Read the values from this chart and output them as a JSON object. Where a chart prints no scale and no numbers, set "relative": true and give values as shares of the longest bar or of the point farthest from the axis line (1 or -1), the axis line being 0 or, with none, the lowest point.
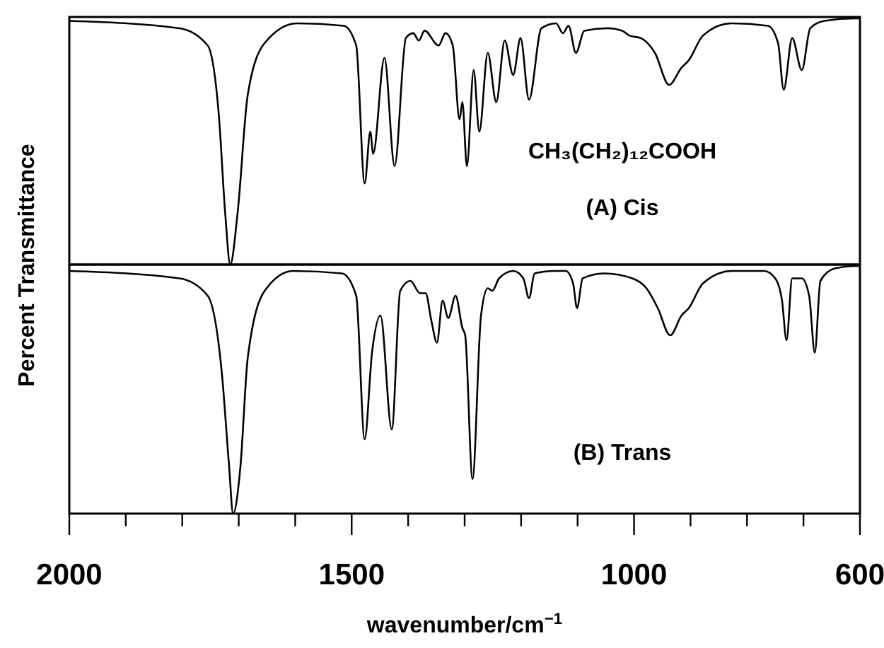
{
  "chart_data": [
    {
      "type": "line",
      "ylabel": "Percent Transmittance",
      "relative": true,
      "tick_labels": false,
      "xlim": [
        2000,
        600
      ],
      "annotations": [
        "CH₃(CH₂)₁₂COOH",
        "(A) Cis"
      ],
      "x": [
        2000,
        1805,
        1755,
        1735,
        1724,
        1715,
        1702,
        1684,
        1654,
        1597,
        1514,
        1492,
        1477,
        1467,
        1462,
        1442,
        1424,
        1404,
        1391,
        1381,
        1371,
        1346,
        1334,
        1321,
        1309,
        1304,
        1296,
        1284,
        1274,
        1259,
        1244,
        1229,
        1214,
        1201,
        1186,
        1164,
        1138,
        1126,
        1116,
        1103,
        1088,
        1046,
        1021,
        1008,
        988,
        963,
        938,
        916,
        903,
        878,
        828,
        763,
        745,
        735,
        720,
        703,
        688,
        663,
        608,
        600
      ],
      "series": [
        {
          "color": "#000000",
          "values": [
            0.99,
            0.96,
            0.89,
            0.6,
            0.21,
            0,
            0.21,
            0.69,
            0.9,
            0.98,
            0.97,
            0.89,
            0.33,
            0.54,
            0.45,
            0.84,
            0.4,
            0.92,
            0.94,
            0.91,
            0.95,
            0.89,
            0.94,
            0.89,
            0.59,
            0.66,
            0.4,
            0.79,
            0.54,
            0.86,
            0.66,
            0.91,
            0.77,
            0.92,
            0.67,
            0.96,
            0.98,
            0.94,
            0.97,
            0.86,
            0.95,
            0.96,
            0.95,
            0.93,
            0.92,
            0.86,
            0.73,
            0.8,
            0.83,
            0.93,
            0.98,
            0.97,
            0.9,
            0.71,
            0.92,
            0.79,
            0.96,
            0.99,
            1,
            1
          ]
        }
      ]
    },
    {
      "type": "line",
      "xlabel": "wavenumber/cm$^{−1}$",
      "relative": true,
      "tick_labels": "x",
      "xlim": [
        2000,
        600
      ],
      "xticks": [
        2000,
        {
          "value": 1900,
          "label": null
        },
        {
          "value": 1800,
          "label": null
        },
        {
          "value": 1700,
          "label": null
        },
        {
          "value": 1600,
          "label": null
        },
        1500,
        {
          "value": 1400,
          "label": null
        },
        {
          "value": 1300,
          "label": null
        },
        {
          "value": 1200,
          "label": null
        },
        {
          "value": 1100,
          "label": null
        },
        1000,
        {
          "value": 900,
          "label": null
        },
        {
          "value": 800,
          "label": null
        },
        {
          "value": 700,
          "label": null
        },
        600
      ],
      "annotations": [
        "(B) Trans"
      ],
      "x": [
        2000,
        1805,
        1755,
        1730,
        1717,
        1710,
        1697,
        1684,
        1654,
        1604,
        1517,
        1492,
        1477,
        1464,
        1449,
        1429,
        1414,
        1396,
        1379,
        1369,
        1359,
        1349,
        1339,
        1329,
        1316,
        1304,
        1299,
        1286,
        1271,
        1259,
        1251,
        1239,
        1214,
        1196,
        1186,
        1176,
        1141,
        1121,
        1108,
        1101,
        1091,
        1053,
        1003,
        978,
        958,
        936,
        916,
        903,
        878,
        828,
        770,
        750,
        738,
        730,
        720,
        703,
        690,
        680,
        670,
        645,
        608,
        600
      ],
      "series": [
        {
          "color": "#000000",
          "values": [
            0.98,
            0.95,
            0.88,
            0.57,
            0.19,
            0,
            0.19,
            0.63,
            0.9,
            0.98,
            0.97,
            0.88,
            0.3,
            0.65,
            0.8,
            0.34,
            0.9,
            0.94,
            0.89,
            0.89,
            0.78,
            0.69,
            0.86,
            0.79,
            0.88,
            0.75,
            0.72,
            0.14,
            0.8,
            0.91,
            0.9,
            0.95,
            0.98,
            0.95,
            0.87,
            0.97,
            0.98,
            0.98,
            0.93,
            0.83,
            0.95,
            0.97,
            0.95,
            0.91,
            0.83,
            0.72,
            0.8,
            0.83,
            0.93,
            0.98,
            0.98,
            0.95,
            0.86,
            0.7,
            0.95,
            0.95,
            0.88,
            0.65,
            0.94,
            0.99,
            1,
            1
          ]
        }
      ]
    }
  ]
}
